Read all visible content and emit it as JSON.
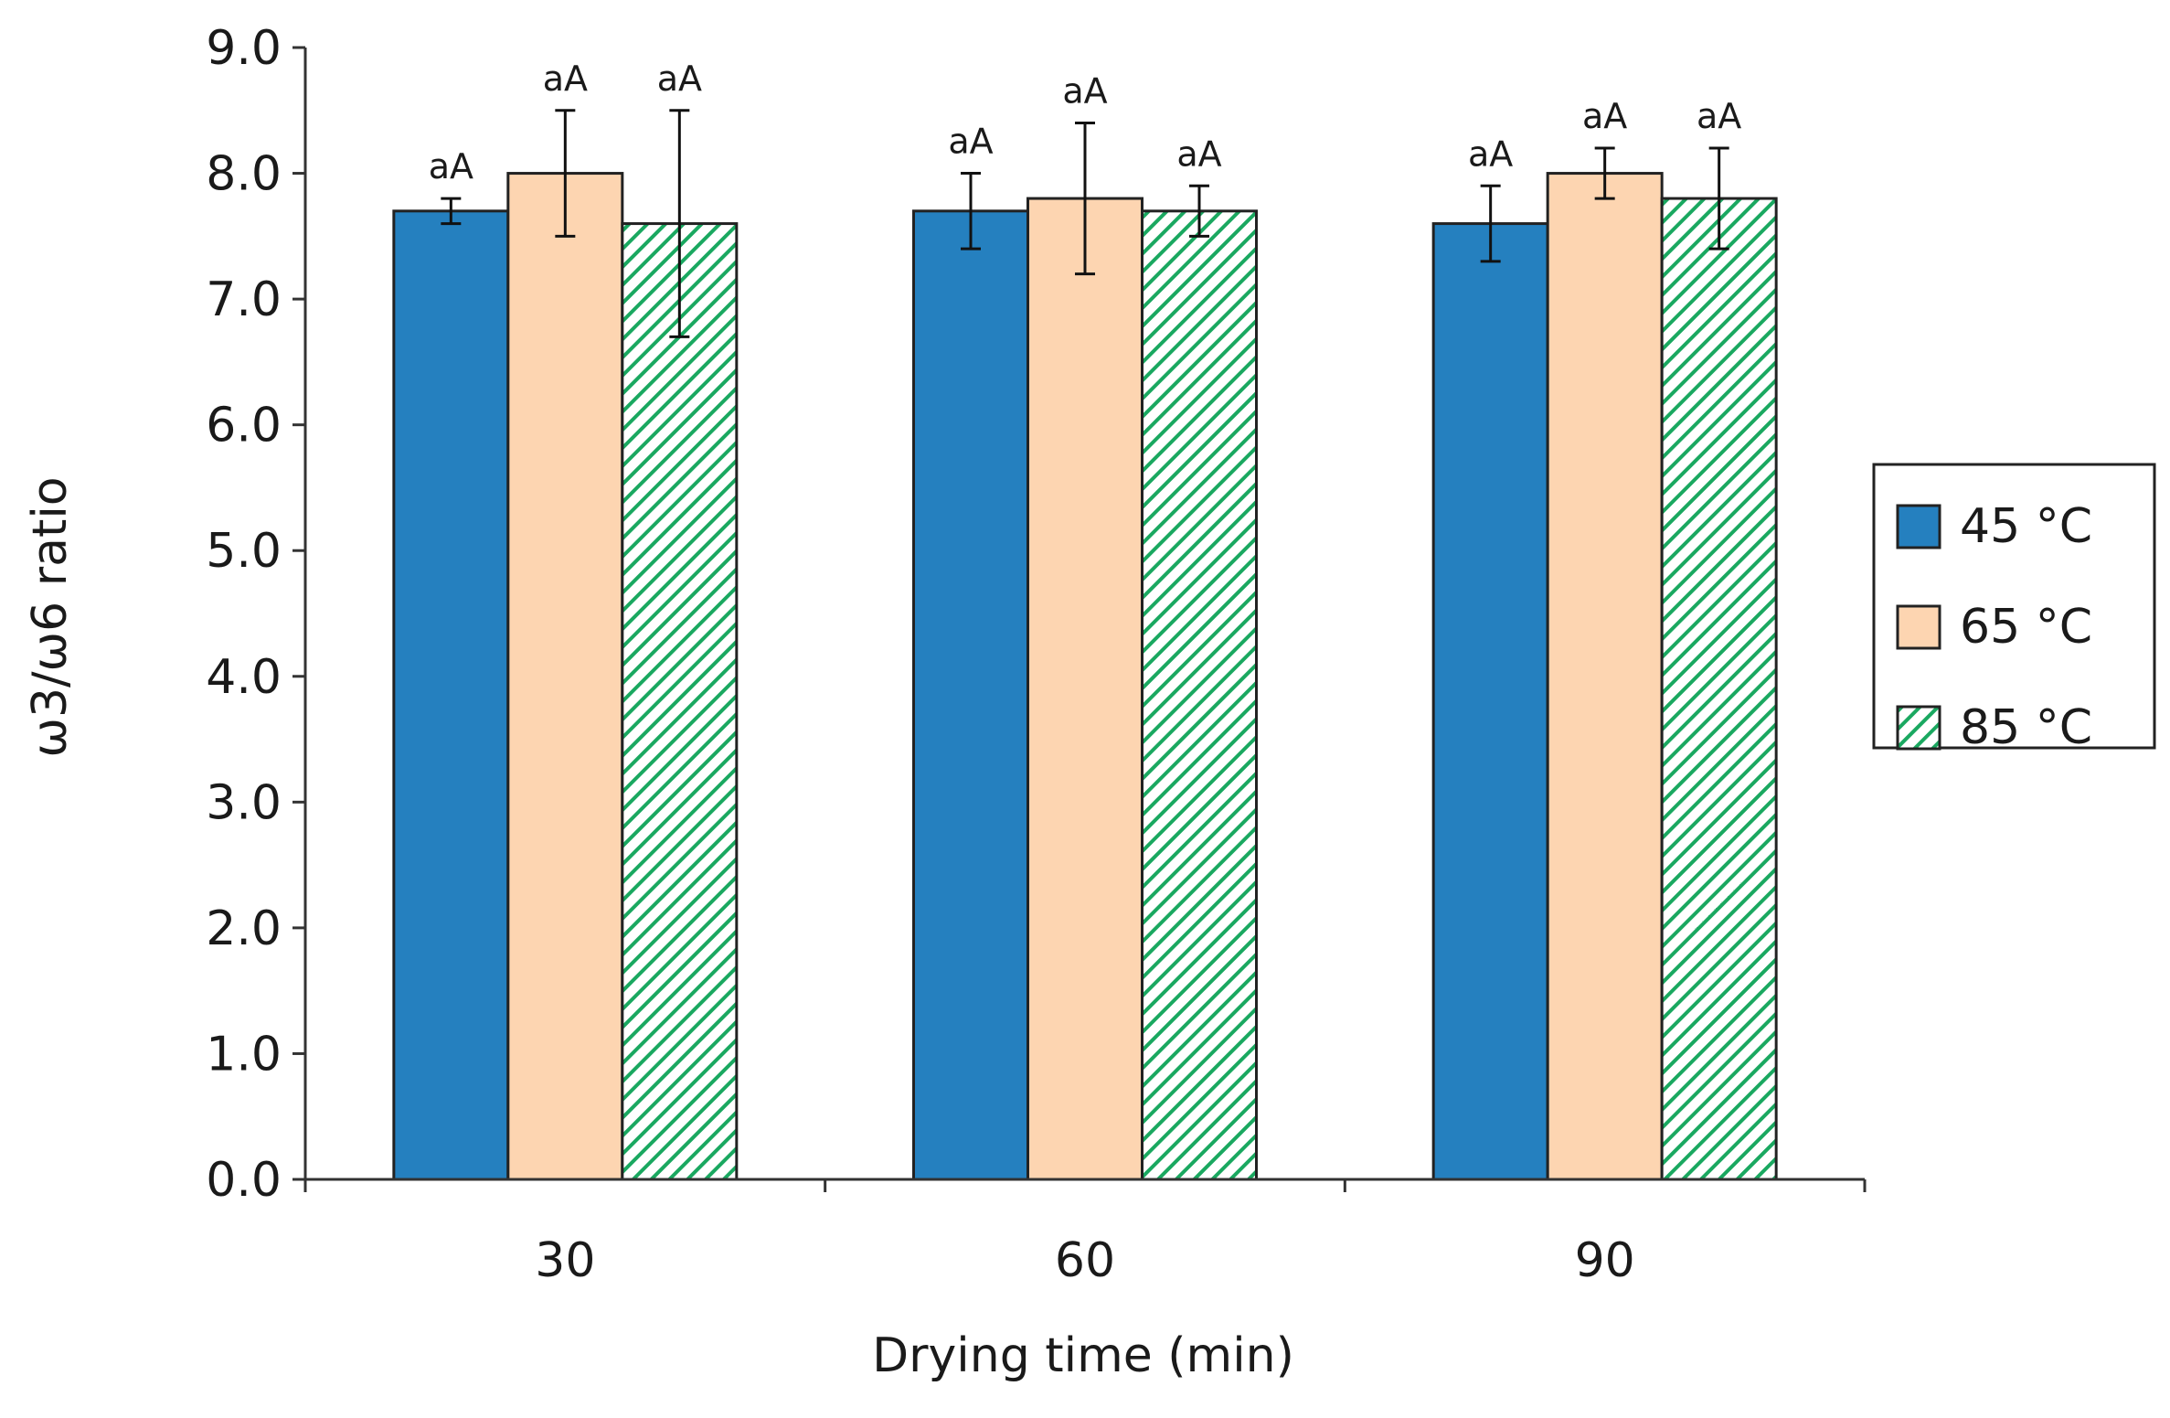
{
  "chart_data": {
    "type": "bar",
    "title": "",
    "xlabel": "Drying time (min)",
    "ylabel": "ω3/ω6 ratio",
    "categories": [
      "30",
      "60",
      "90"
    ],
    "ylim": [
      0,
      9
    ],
    "ytick_step": 1,
    "ytick_labels": [
      "0.0",
      "1.0",
      "2.0",
      "3.0",
      "4.0",
      "5.0",
      "6.0",
      "7.0",
      "8.0",
      "9.0"
    ],
    "grid": false,
    "legend_position": "right",
    "series": [
      {
        "name": "45 °C",
        "color": "#2580bf",
        "pattern": "solid",
        "values": [
          7.7,
          7.7,
          7.6
        ],
        "errors": [
          0.1,
          0.3,
          0.3
        ],
        "labels": [
          "aA",
          "aA",
          "aA"
        ]
      },
      {
        "name": "65 °C",
        "color": "#fdd5b1",
        "pattern": "solid",
        "values": [
          8.0,
          7.8,
          8.0
        ],
        "errors": [
          0.5,
          0.6,
          0.2
        ],
        "labels": [
          "aA",
          "aA",
          "aA"
        ]
      },
      {
        "name": "85 °C",
        "color": "#1aa860",
        "pattern": "diagonal-hatch",
        "values": [
          7.6,
          7.7,
          7.8
        ],
        "errors": [
          0.9,
          0.2,
          0.4
        ],
        "labels": [
          "aA",
          "aA",
          "aA"
        ]
      }
    ]
  }
}
